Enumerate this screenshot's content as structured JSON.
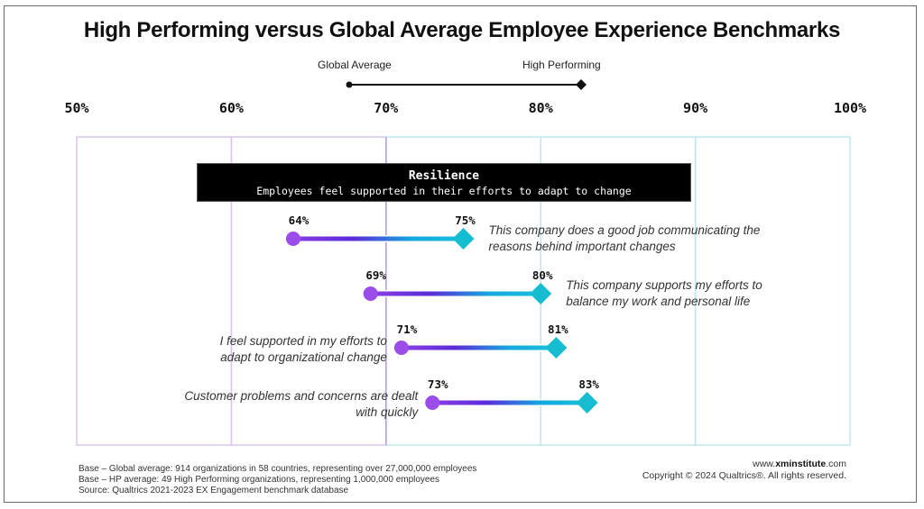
{
  "header": {
    "title": "High Performing versus Global Average Employee Experience Benchmarks",
    "legend": {
      "global_label": "Global Average",
      "high_label": "High Performing"
    }
  },
  "category": {
    "title": "Resilience",
    "subtitle": "Employees feel supported in their efforts to adapt to change"
  },
  "colors": {
    "global_marker": "#9b4dea",
    "high_marker": "#16bcd0",
    "gradient_start": "#8a3ee6",
    "gradient_mid": "#5a2bd8",
    "gradient_end": "#19c0dc",
    "band_purple": "#dcc6f0",
    "band_cyan": "#bfe9f1",
    "line_70": "#b59be6"
  },
  "chart_data": {
    "type": "dumbbell",
    "title": "High Performing versus Global Average Employee Experience Benchmarks",
    "xlabel": "",
    "ylabel": "",
    "xlim": [
      50,
      100
    ],
    "x_ticks": [
      50,
      60,
      70,
      80,
      90,
      100
    ],
    "x_tick_labels": [
      "50%",
      "60%",
      "70%",
      "80%",
      "90%",
      "100%"
    ],
    "grid": true,
    "legend": {
      "placement": "top-center",
      "entries": [
        {
          "name": "Global Average",
          "marker": "circle"
        },
        {
          "name": "High Performing",
          "marker": "diamond"
        }
      ]
    },
    "group": "Resilience",
    "group_description": "Employees feel supported in their efforts to adapt to change",
    "items": [
      {
        "label": "This company does a good job communicating the reasons behind important changes",
        "label_lines": [
          "This company does a good job communicating the",
          "reasons behind important changes"
        ],
        "label_side": "right",
        "global": 64,
        "high": 75,
        "global_label": "64%",
        "high_label": "75%"
      },
      {
        "label": "This company supports my efforts to balance my work and personal life",
        "label_lines": [
          "This company supports my efforts to",
          "balance my work and personal life"
        ],
        "label_side": "right",
        "global": 69,
        "high": 80,
        "global_label": "69%",
        "high_label": "80%"
      },
      {
        "label": "I feel supported in my efforts to adapt to organizational change",
        "label_lines": [
          "I feel supported in my efforts to",
          "adapt to organizational change"
        ],
        "label_side": "left",
        "global": 71,
        "high": 81,
        "global_label": "71%",
        "high_label": "81%"
      },
      {
        "label": "Customer problems and concerns are dealt with quickly",
        "label_lines": [
          "Customer problems and concerns are dealt",
          "with quickly"
        ],
        "label_side": "left",
        "global": 73,
        "high": 83,
        "global_label": "73%",
        "high_label": "83%"
      }
    ]
  },
  "footer": {
    "notes": [
      "Base – Global average: 914 organizations in 58 countries, representing over 27,000,000 employees",
      "Base – HP average: 49 High Performing organizations,  representing 1,000,000 employees",
      "Source: Qualtrics 2021-2023 EX Engagement benchmark database"
    ],
    "site_prefix": "www.",
    "site_bold": "xminstitute",
    "site_suffix": ".com",
    "copyright": "Copyright © 2024 Qualtrics®. All rights reserved."
  }
}
